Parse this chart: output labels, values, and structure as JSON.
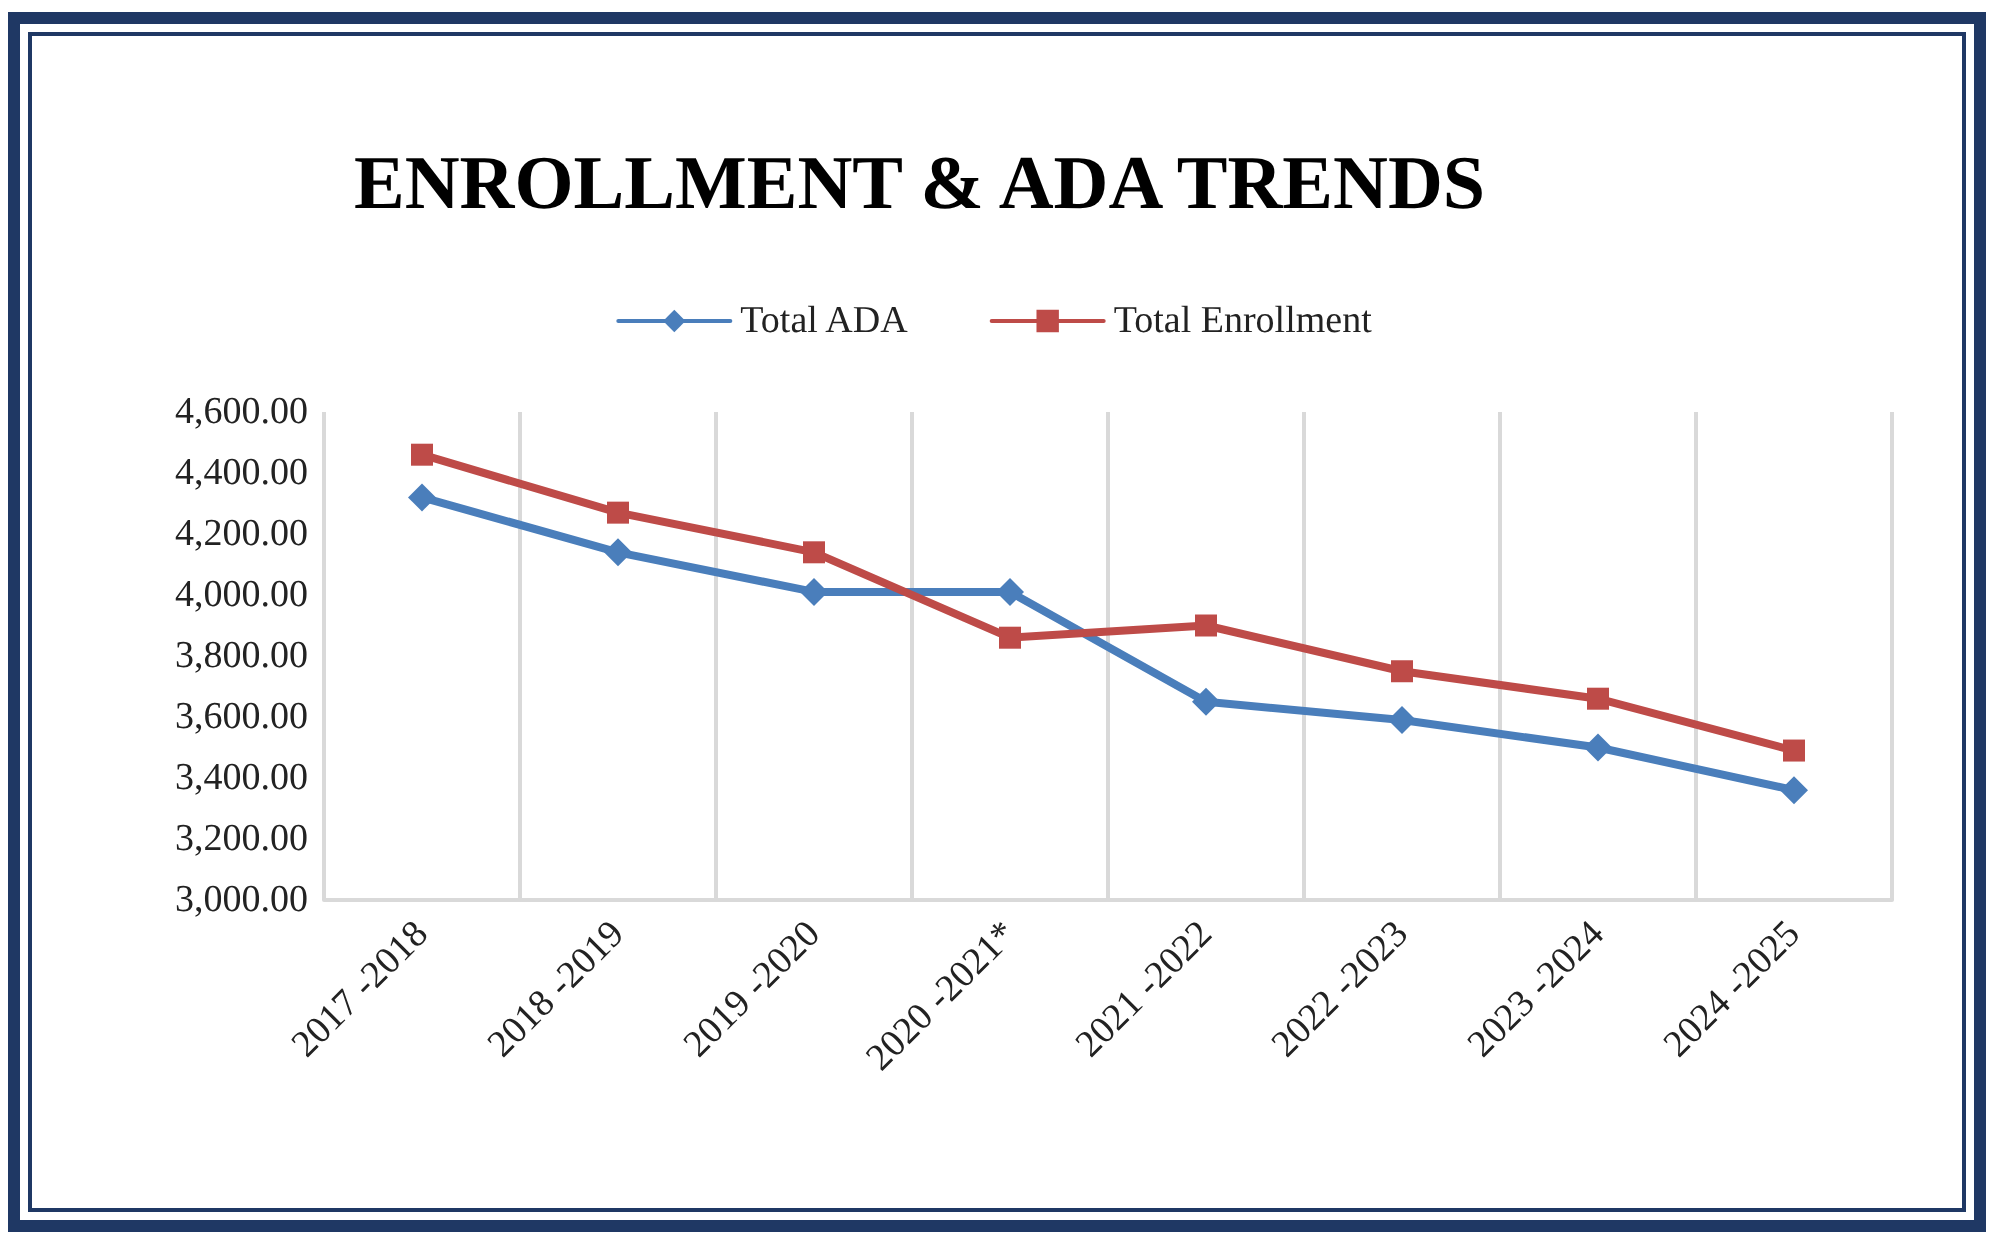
{
  "chart_data": {
    "type": "line",
    "title": "ENROLLMENT & ADA TRENDS",
    "categories": [
      "2017 -2018",
      "2018 -2019",
      "2019 -2020",
      "2020 -2021*",
      "2021 -2022",
      "2022 -2023",
      "2023 -2024",
      "2024 -2025"
    ],
    "series": [
      {
        "name": "Total ADA",
        "color": "#4a7ebb",
        "marker": "diamond",
        "values": [
          4320,
          4140,
          4010,
          4010,
          3650,
          3590,
          3500,
          3360
        ]
      },
      {
        "name": "Total Enrollment",
        "color": "#be4b48",
        "marker": "square",
        "values": [
          4460,
          4270,
          4140,
          3860,
          3900,
          3750,
          3660,
          3490
        ]
      }
    ],
    "ylim": [
      3000,
      4600
    ],
    "yticks": [
      {
        "value": 3000,
        "label": "3,000.00"
      },
      {
        "value": 3200,
        "label": "3,200.00"
      },
      {
        "value": 3400,
        "label": "3,400.00"
      },
      {
        "value": 3600,
        "label": "3,600.00"
      },
      {
        "value": 3800,
        "label": "3,800.00"
      },
      {
        "value": 4000,
        "label": "4,000.00"
      },
      {
        "value": 4200,
        "label": "4,200.00"
      },
      {
        "value": 4400,
        "label": "4,400.00"
      },
      {
        "value": 4600,
        "label": "4,600.00"
      }
    ],
    "grid": "x",
    "legend": "top",
    "line_style": "solid"
  }
}
